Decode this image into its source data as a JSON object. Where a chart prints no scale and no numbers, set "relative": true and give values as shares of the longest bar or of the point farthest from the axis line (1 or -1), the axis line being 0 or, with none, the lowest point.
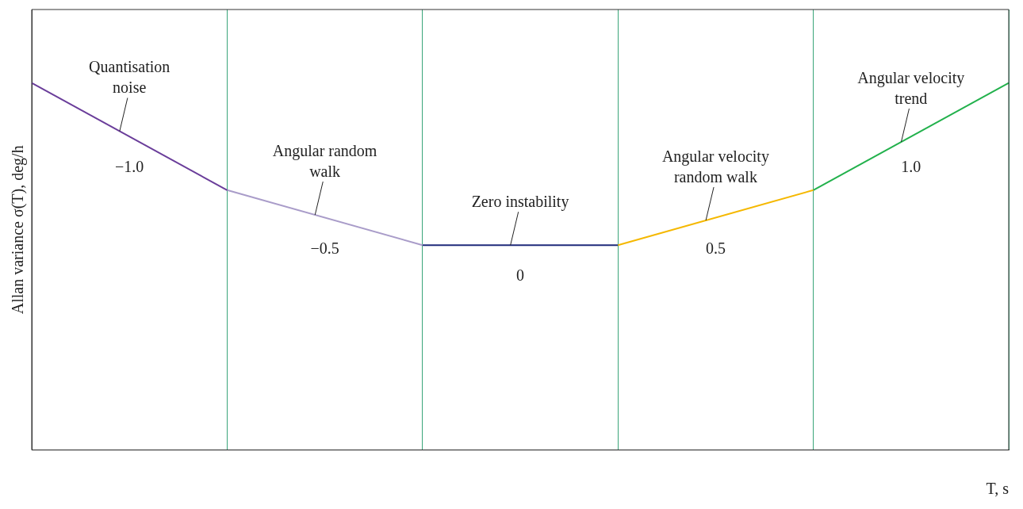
{
  "chart_data": {
    "type": "line",
    "relative": true,
    "xlabel": "T, s",
    "ylabel": "Allan variance σ(T), deg/h",
    "categories": [
      null,
      null,
      null,
      null,
      null,
      null
    ],
    "series": [
      {
        "name": "Quantisation noise",
        "color": "#6a3d9a",
        "values": [
          1,
          0.708,
          null,
          null,
          null,
          null
        ]
      },
      {
        "name": "Angular random walk",
        "color": "#a99cc9",
        "values": [
          null,
          0.708,
          0.558,
          null,
          null,
          null
        ]
      },
      {
        "name": "Zero instability",
        "color": "#1f2a7a",
        "values": [
          null,
          null,
          0.558,
          0.558,
          null,
          null
        ]
      },
      {
        "name": "Angular velocity random walk",
        "color": "#f5b800",
        "values": [
          null,
          null,
          null,
          0.558,
          0.708,
          null
        ]
      },
      {
        "name": "Angular velocity trend",
        "color": "#22b14c",
        "values": [
          null,
          null,
          null,
          null,
          0.708,
          1
        ]
      }
    ],
    "annotations": [
      "−1.0",
      "−0.5",
      "0",
      "0.5",
      "1.0"
    ],
    "grid": "x",
    "legend": false,
    "marker": "none",
    "line_style": "solid"
  }
}
